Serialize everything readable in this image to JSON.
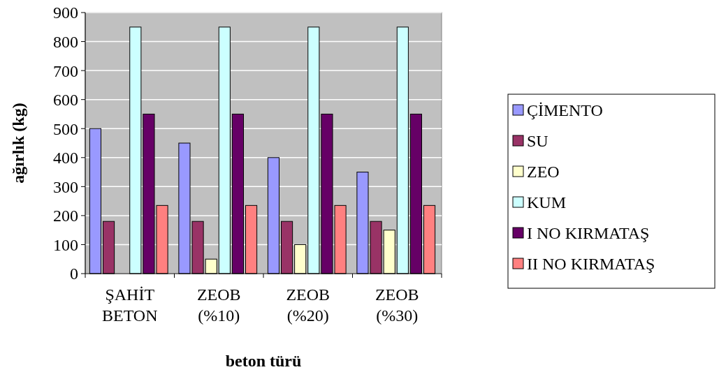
{
  "chart_data": {
    "type": "bar",
    "xlabel": "beton türü",
    "ylabel": "ağırlık (kg)",
    "categories": [
      "ŞAHİT BETON",
      "ZEOB (%10)",
      "ZEOB (%20)",
      "ZEOB (%30)"
    ],
    "series": [
      {
        "name": "ÇİMENTO",
        "color": "#9999ff",
        "values": [
          500,
          450,
          400,
          350
        ]
      },
      {
        "name": "SU",
        "color": "#993366",
        "values": [
          180,
          180,
          180,
          180
        ]
      },
      {
        "name": "ZEO",
        "color": "#ffffcc",
        "values": [
          0,
          50,
          100,
          150
        ]
      },
      {
        "name": "KUM",
        "color": "#ccffff",
        "values": [
          850,
          850,
          850,
          850
        ]
      },
      {
        "name": "I NO KIRMATAŞ",
        "color": "#660066",
        "values": [
          550,
          550,
          550,
          550
        ]
      },
      {
        "name": "II NO KIRMATAŞ",
        "color": "#ff8080",
        "values": [
          235,
          235,
          235,
          235
        ]
      }
    ],
    "ylim": [
      0,
      900
    ],
    "yticks": [
      0,
      100,
      200,
      300,
      400,
      500,
      600,
      700,
      800,
      900
    ],
    "grid": "y",
    "legend": "right"
  }
}
